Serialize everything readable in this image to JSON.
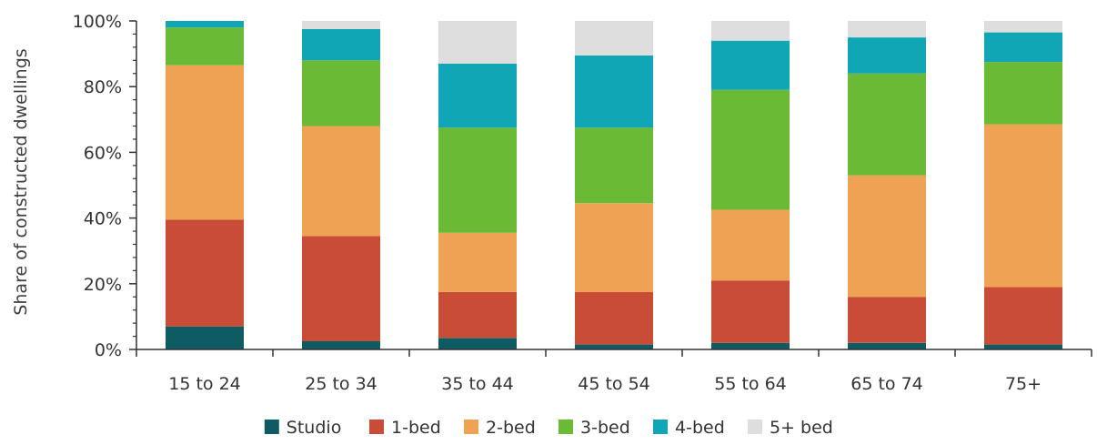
{
  "chart_data": {
    "type": "bar",
    "stacked": true,
    "title": "",
    "xlabel": "",
    "ylabel": "Share of constructed dwellings",
    "ylim": [
      0,
      100
    ],
    "y_ticks": [
      "0%",
      "20%",
      "40%",
      "60%",
      "80%",
      "100%"
    ],
    "y_tick_values": [
      0,
      20,
      40,
      60,
      80,
      100
    ],
    "grid": false,
    "legend_position": "bottom",
    "categories": [
      "15 to 24",
      "25 to 34",
      "35 to 44",
      "45 to 54",
      "55 to 64",
      "65 to 74",
      "75+"
    ],
    "series": [
      {
        "name": "Studio",
        "color": "#0e5b64",
        "values": [
          7,
          2.5,
          3.5,
          1.5,
          2,
          2,
          1.5
        ]
      },
      {
        "name": "1-bed",
        "color": "#c94d36",
        "values": [
          32.5,
          32,
          14,
          16,
          19,
          14,
          17.5
        ]
      },
      {
        "name": "2-bed",
        "color": "#f0a254",
        "values": [
          47,
          33.5,
          18,
          27,
          21.5,
          37,
          49.5
        ]
      },
      {
        "name": "3-bed",
        "color": "#6aba36",
        "values": [
          11.5,
          20,
          32,
          23,
          36.5,
          31,
          19
        ]
      },
      {
        "name": "4-bed",
        "color": "#11a6b6",
        "values": [
          2,
          9.5,
          19.5,
          22,
          15,
          11,
          9
        ]
      },
      {
        "name": "5+ bed",
        "color": "#dedede",
        "values": [
          0,
          2.5,
          13,
          10.5,
          6,
          5,
          3.5
        ]
      }
    ]
  }
}
